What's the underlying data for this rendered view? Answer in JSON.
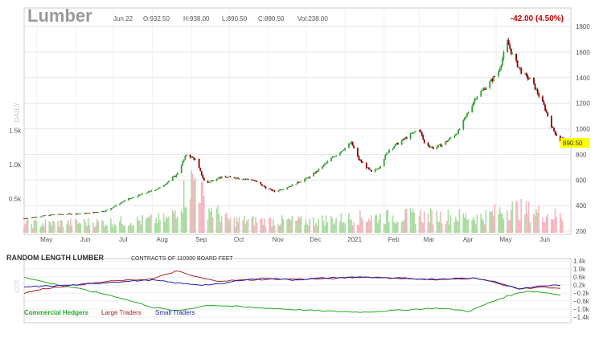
{
  "colors": {
    "up": "#2ca02c",
    "down": "#8b0000",
    "vol_up": "#a9dca0",
    "vol_down": "#f4b6bf",
    "commercials": "#22aa22",
    "large": "#aa2222",
    "small": "#2222aa",
    "change": "#cc0000",
    "last_bg": "#ffff00",
    "grid": "#e5e5e5",
    "axis_text": "#555555",
    "title": "#999999"
  },
  "header": {
    "symbol": "Lumber",
    "date": "Jun 22",
    "open": "O:932.50",
    "high": "H:938.00",
    "low": "L:890.50",
    "close": "C:890.50",
    "volume": "Vol:238.00",
    "change": "-42.00 (4.50%)"
  },
  "y_axis_label": "DAILY",
  "last_price_label": "890.50",
  "cot_panel": {
    "title": "RANDOM LENGTH LUMBER",
    "subtitle": "CONTRACTS OF 110000 BOARD FEET",
    "y_label": "COT",
    "legend": [
      "Commercial Hedgers",
      "Large Traders",
      "Small Traders"
    ]
  },
  "chart_data": [
    {
      "type": "candlestick",
      "title": "Lumber",
      "ylabel": "DAILY",
      "ylim": [
        200,
        1800
      ],
      "y_ticks": [
        200,
        400,
        600,
        800,
        1000,
        1200,
        1400,
        1600,
        1800
      ],
      "x_tick_labels": [
        "May",
        "Jun",
        "Jul",
        "Aug",
        "Sep",
        "Oct",
        "Nov",
        "Dec",
        "2021",
        "Feb",
        "Mar",
        "Apr",
        "May",
        "Jun"
      ],
      "x_tick_months": [
        "2020-05",
        "2020-06",
        "2020-07",
        "2020-08",
        "2020-09",
        "2020-10",
        "2020-11",
        "2020-12",
        "2021-01",
        "2021-02",
        "2021-03",
        "2021-04",
        "2021-05",
        "2021-06"
      ],
      "x_range": [
        "2020-04-21",
        "2021-06-23"
      ],
      "price_path": [
        [
          "2020-04-21",
          300
        ],
        [
          "2020-05-15",
          330
        ],
        [
          "2020-06-10",
          340
        ],
        [
          "2020-06-25",
          360
        ],
        [
          "2020-07-10",
          440
        ],
        [
          "2020-07-24",
          490
        ],
        [
          "2020-08-07",
          540
        ],
        [
          "2020-08-20",
          640
        ],
        [
          "2020-08-28",
          800
        ],
        [
          "2020-09-04",
          760
        ],
        [
          "2020-09-12",
          570
        ],
        [
          "2020-09-22",
          620
        ],
        [
          "2020-10-05",
          620
        ],
        [
          "2020-10-20",
          600
        ],
        [
          "2020-10-30",
          540
        ],
        [
          "2020-11-06",
          510
        ],
        [
          "2020-11-20",
          560
        ],
        [
          "2020-12-05",
          630
        ],
        [
          "2020-12-20",
          760
        ],
        [
          "2021-01-06",
          890
        ],
        [
          "2021-01-12",
          760
        ],
        [
          "2021-01-22",
          660
        ],
        [
          "2021-01-28",
          700
        ],
        [
          "2021-02-05",
          840
        ],
        [
          "2021-02-20",
          940
        ],
        [
          "2021-03-01",
          1000
        ],
        [
          "2021-03-05",
          890
        ],
        [
          "2021-03-12",
          850
        ],
        [
          "2021-03-20",
          880
        ],
        [
          "2021-04-01",
          980
        ],
        [
          "2021-04-15",
          1250
        ],
        [
          "2021-04-25",
          1350
        ],
        [
          "2021-05-03",
          1450
        ],
        [
          "2021-05-10",
          1680
        ],
        [
          "2021-05-15",
          1550
        ],
        [
          "2021-05-22",
          1430
        ],
        [
          "2021-05-29",
          1380
        ],
        [
          "2021-06-08",
          1180
        ],
        [
          "2021-06-15",
          1000
        ],
        [
          "2021-06-22",
          890.5
        ]
      ],
      "volume_axis": {
        "ticks": [
          "0.5k",
          "1.0k",
          "1.5k"
        ],
        "values": [
          500,
          1000,
          1500
        ]
      },
      "volume_profile": [
        [
          "2020-04-21",
          130
        ],
        [
          "2020-07-01",
          160
        ],
        [
          "2020-08-15",
          200
        ],
        [
          "2020-08-28",
          620
        ],
        [
          "2020-09-05",
          820
        ],
        [
          "2020-09-12",
          400
        ],
        [
          "2020-10-01",
          180
        ],
        [
          "2020-12-01",
          170
        ],
        [
          "2021-01-10",
          220
        ],
        [
          "2021-03-01",
          250
        ],
        [
          "2021-04-20",
          230
        ],
        [
          "2021-05-12",
          360
        ],
        [
          "2021-06-22",
          238
        ]
      ]
    },
    {
      "type": "line",
      "title": "RANDOM LENGTH LUMBER",
      "subtitle": "CONTRACTS OF 110000 BOARD FEET",
      "ylabel": "COT",
      "ylim": [
        -1.4,
        1.4
      ],
      "y_ticks": [
        1.4,
        1.0,
        0.6,
        0.2,
        -0.2,
        -0.6,
        -1.0,
        -1.4
      ],
      "y_tick_labels": [
        "1.4k",
        "1.0k",
        "0.6k",
        "0.2k",
        "−0.2k",
        "−0.6k",
        "−1.0k",
        "−1.4k"
      ],
      "series": [
        {
          "name": "Commercial Hedgers",
          "color": "#22aa22",
          "values": [
            [
              "2020-04-21",
              0.6
            ],
            [
              "2020-05-10",
              0.3
            ],
            [
              "2020-06-01",
              0.05
            ],
            [
              "2020-07-01",
              -0.35
            ],
            [
              "2020-08-01",
              -0.9
            ],
            [
              "2020-08-20",
              -1.1
            ],
            [
              "2020-09-15",
              -0.8
            ],
            [
              "2020-10-15",
              -0.9
            ],
            [
              "2020-11-15",
              -1.0
            ],
            [
              "2020-12-15",
              -1.1
            ],
            [
              "2021-01-15",
              -1.15
            ],
            [
              "2021-02-15",
              -1.05
            ],
            [
              "2021-03-15",
              -0.95
            ],
            [
              "2021-04-10",
              -1.1
            ],
            [
              "2021-04-25",
              -0.7
            ],
            [
              "2021-05-10",
              -0.35
            ],
            [
              "2021-05-25",
              -0.1
            ],
            [
              "2021-06-05",
              -0.15
            ],
            [
              "2021-06-22",
              -0.3
            ]
          ]
        },
        {
          "name": "Large Traders",
          "color": "#aa2222",
          "values": [
            [
              "2020-04-21",
              -0.2
            ],
            [
              "2020-05-10",
              0.05
            ],
            [
              "2020-06-01",
              0.2
            ],
            [
              "2020-07-01",
              0.4
            ],
            [
              "2020-08-01",
              0.5
            ],
            [
              "2020-08-20",
              0.9
            ],
            [
              "2020-09-05",
              0.6
            ],
            [
              "2020-09-20",
              0.4
            ],
            [
              "2020-10-15",
              0.45
            ],
            [
              "2020-11-15",
              0.5
            ],
            [
              "2020-12-15",
              0.5
            ],
            [
              "2021-01-15",
              0.6
            ],
            [
              "2021-02-15",
              0.55
            ],
            [
              "2021-03-15",
              0.45
            ],
            [
              "2021-04-15",
              0.55
            ],
            [
              "2021-05-01",
              0.3
            ],
            [
              "2021-05-20",
              0.0
            ],
            [
              "2021-06-05",
              0.1
            ],
            [
              "2021-06-22",
              0.0
            ]
          ]
        },
        {
          "name": "Small Traders",
          "color": "#2222aa",
          "values": [
            [
              "2020-04-21",
              0.1
            ],
            [
              "2020-05-10",
              0.15
            ],
            [
              "2020-06-01",
              0.2
            ],
            [
              "2020-07-01",
              0.35
            ],
            [
              "2020-08-01",
              0.45
            ],
            [
              "2020-08-20",
              0.3
            ],
            [
              "2020-09-10",
              0.2
            ],
            [
              "2020-09-25",
              0.25
            ],
            [
              "2020-10-10",
              0.45
            ],
            [
              "2020-11-01",
              0.55
            ],
            [
              "2020-11-20",
              0.45
            ],
            [
              "2020-12-15",
              0.55
            ],
            [
              "2021-01-15",
              0.6
            ],
            [
              "2021-02-15",
              0.5
            ],
            [
              "2021-03-15",
              0.5
            ],
            [
              "2021-04-15",
              0.55
            ],
            [
              "2021-05-01",
              0.35
            ],
            [
              "2021-05-20",
              0.0
            ],
            [
              "2021-06-05",
              0.15
            ],
            [
              "2021-06-22",
              0.2
            ]
          ]
        }
      ]
    }
  ]
}
